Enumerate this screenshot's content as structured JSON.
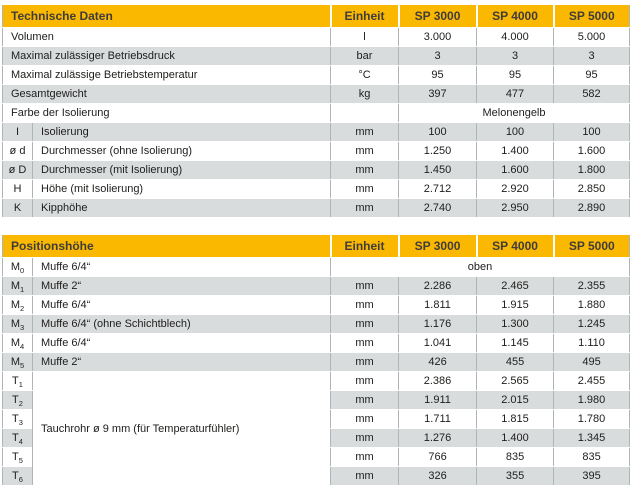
{
  "colors": {
    "header_bg": "#fbb800",
    "row_alt_bg": "#d9dcdd",
    "grid_line": "#afb5b7",
    "text": "#1d1d1b"
  },
  "t1": {
    "title": "Technische Daten",
    "col_unit": "Einheit",
    "cols": [
      "SP 3000",
      "SP 4000",
      "SP 5000"
    ],
    "rows": [
      {
        "label": "Volumen",
        "unit": "l",
        "v1": "3.000",
        "v2": "4.000",
        "v3": "5.000"
      },
      {
        "label": "Maximal zulässiger Betriebsdruck",
        "unit": "bar",
        "v1": "3",
        "v2": "3",
        "v3": "3"
      },
      {
        "label": "Maximal zulässige Betriebstemperatur",
        "unit": "°C",
        "v1": "95",
        "v2": "95",
        "v3": "95"
      },
      {
        "label": "Gesamtgewicht",
        "unit": "kg",
        "v1": "397",
        "v2": "477",
        "v3": "582"
      },
      {
        "label": "Farbe der Isolierung",
        "unit": "",
        "span": "Melonengelb"
      },
      {
        "sym": "I",
        "label": "Isolierung",
        "unit": "mm",
        "v1": "100",
        "v2": "100",
        "v3": "100"
      },
      {
        "sym": "ø d",
        "label": "Durchmesser (ohne Isolierung)",
        "unit": "mm",
        "v1": "1.250",
        "v2": "1.400",
        "v3": "1.600"
      },
      {
        "sym": "ø D",
        "label": "Durchmesser (mit Isolierung)",
        "unit": "mm",
        "v1": "1.450",
        "v2": "1.600",
        "v3": "1.800"
      },
      {
        "sym": "H",
        "label": "Höhe (mit Isolierung)",
        "unit": "mm",
        "v1": "2.712",
        "v2": "2.920",
        "v3": "2.850"
      },
      {
        "sym": "K",
        "label": "Kipphöhe",
        "unit": "mm",
        "v1": "2.740",
        "v2": "2.950",
        "v3": "2.890"
      }
    ]
  },
  "t2": {
    "title": "Positionshöhe",
    "col_unit": "Einheit",
    "cols": [
      "SP 3000",
      "SP 4000",
      "SP 5000"
    ],
    "merged_label": "Tauchrohr ø 9 mm (für Temperaturfühler)",
    "rows": [
      {
        "sym": "M",
        "sub": "0",
        "label": "Muffe 6/4“",
        "span": "oben"
      },
      {
        "sym": "M",
        "sub": "1",
        "label": "Muffe 2“",
        "unit": "mm",
        "v1": "2.286",
        "v2": "2.465",
        "v3": "2.355"
      },
      {
        "sym": "M",
        "sub": "2",
        "label": "Muffe 6/4“",
        "unit": "mm",
        "v1": "1.811",
        "v2": "1.915",
        "v3": "1.880"
      },
      {
        "sym": "M",
        "sub": "3",
        "label": "Muffe 6/4“ (ohne Schichtblech)",
        "unit": "mm",
        "v1": "1.176",
        "v2": "1.300",
        "v3": "1.245"
      },
      {
        "sym": "M",
        "sub": "4",
        "label": "Muffe 6/4“",
        "unit": "mm",
        "v1": "1.041",
        "v2": "1.145",
        "v3": "1.110"
      },
      {
        "sym": "M",
        "sub": "5",
        "label": "Muffe 2“",
        "unit": "mm",
        "v1": "426",
        "v2": "455",
        "v3": "495"
      },
      {
        "sym": "T",
        "sub": "1",
        "unit": "mm",
        "v1": "2.386",
        "v2": "2.565",
        "v3": "2.455"
      },
      {
        "sym": "T",
        "sub": "2",
        "unit": "mm",
        "v1": "1.911",
        "v2": "2.015",
        "v3": "1.980"
      },
      {
        "sym": "T",
        "sub": "3",
        "unit": "mm",
        "v1": "1.711",
        "v2": "1.815",
        "v3": "1.780"
      },
      {
        "sym": "T",
        "sub": "4",
        "unit": "mm",
        "v1": "1.276",
        "v2": "1.400",
        "v3": "1.345"
      },
      {
        "sym": "T",
        "sub": "5",
        "unit": "mm",
        "v1": "766",
        "v2": "835",
        "v3": "835"
      },
      {
        "sym": "T",
        "sub": "6",
        "unit": "mm",
        "v1": "326",
        "v2": "355",
        "v3": "395"
      }
    ]
  }
}
